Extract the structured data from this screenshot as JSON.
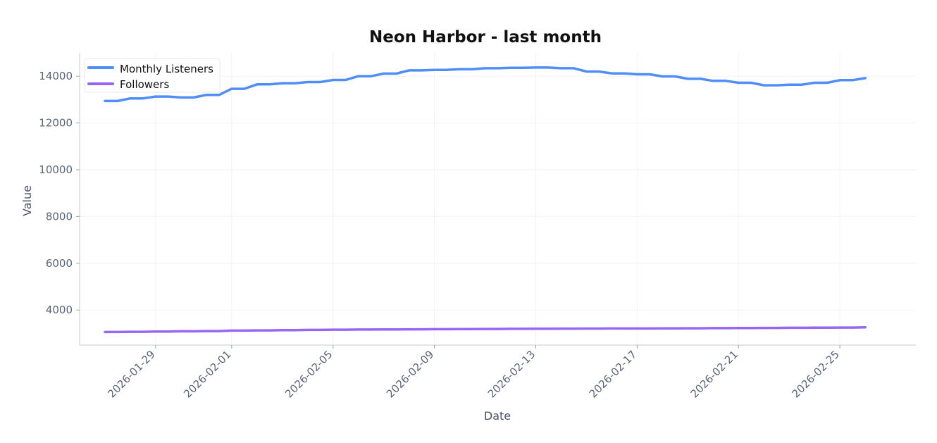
{
  "chart_data": {
    "type": "line",
    "title": "Neon Harbor - last month",
    "xlabel": "Date",
    "ylabel": "Value",
    "x_tick_labels": [
      "2026-01-29",
      "2026-02-01",
      "2026-02-05",
      "2026-02-09",
      "2026-02-13",
      "2026-02-17",
      "2026-02-21",
      "2026-02-25"
    ],
    "y_ticks": [
      4000,
      6000,
      8000,
      10000,
      12000,
      14000
    ],
    "ylim": [
      2500,
      15000
    ],
    "xlim": [
      "2026-01-26",
      "2026-02-28"
    ],
    "grid": true,
    "legend_position": "top-left",
    "x": [
      "2026-01-27",
      "2026-01-28",
      "2026-01-29",
      "2026-01-30",
      "2026-01-31",
      "2026-02-01",
      "2026-02-02",
      "2026-02-03",
      "2026-02-04",
      "2026-02-05",
      "2026-02-06",
      "2026-02-07",
      "2026-02-08",
      "2026-02-09",
      "2026-02-10",
      "2026-02-11",
      "2026-02-12",
      "2026-02-13",
      "2026-02-14",
      "2026-02-15",
      "2026-02-16",
      "2026-02-17",
      "2026-02-18",
      "2026-02-19",
      "2026-02-20",
      "2026-02-21",
      "2026-02-22",
      "2026-02-23",
      "2026-02-24",
      "2026-02-25",
      "2026-02-26"
    ],
    "series": [
      {
        "name": "Monthly Listeners",
        "color": "#4f8ef7",
        "values": [
          12940,
          13050,
          13130,
          13090,
          13200,
          13460,
          13650,
          13700,
          13750,
          13840,
          14000,
          14110,
          14250,
          14270,
          14300,
          14340,
          14360,
          14370,
          14340,
          14200,
          14120,
          14080,
          13990,
          13890,
          13800,
          13720,
          13610,
          13640,
          13720,
          13830,
          13920
        ]
      },
      {
        "name": "Followers",
        "color": "#9966f2",
        "values": [
          3060,
          3070,
          3080,
          3090,
          3100,
          3120,
          3130,
          3140,
          3150,
          3160,
          3165,
          3170,
          3175,
          3180,
          3185,
          3190,
          3195,
          3200,
          3205,
          3208,
          3210,
          3212,
          3215,
          3220,
          3225,
          3230,
          3235,
          3240,
          3245,
          3250,
          3260
        ]
      }
    ]
  }
}
